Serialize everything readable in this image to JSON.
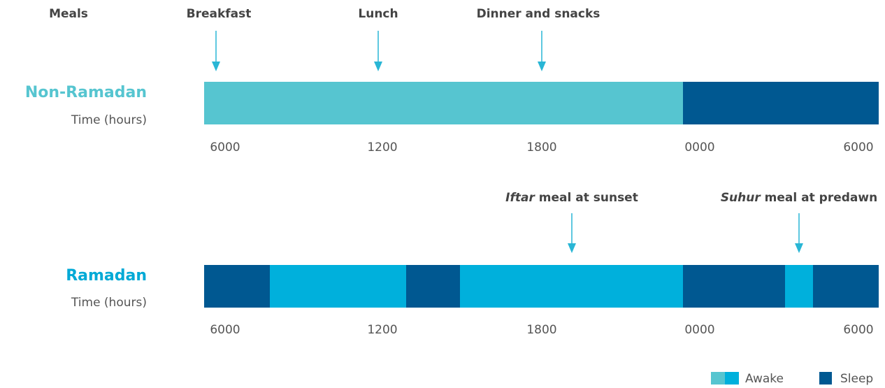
{
  "header": {
    "meals": "Meals"
  },
  "non_ramadan": {
    "title": "Non-Ramadan",
    "subtitle": "Time (hours)",
    "meals": [
      "Breakfast",
      "Lunch",
      "Dinner and snacks"
    ],
    "ticks": [
      "6000",
      "1200",
      "1800",
      "0000",
      "6000"
    ]
  },
  "ramadan": {
    "title": "Ramadan",
    "subtitle": "Time (hours)",
    "meals": [
      {
        "name": "Iftar",
        "text": "meal at sunset"
      },
      {
        "name": "Suhur",
        "text": "meal at predawn"
      }
    ],
    "ticks": [
      "6000",
      "1200",
      "1800",
      "0000",
      "6000"
    ]
  },
  "legend": [
    "Awake",
    "Sleep"
  ]
}
